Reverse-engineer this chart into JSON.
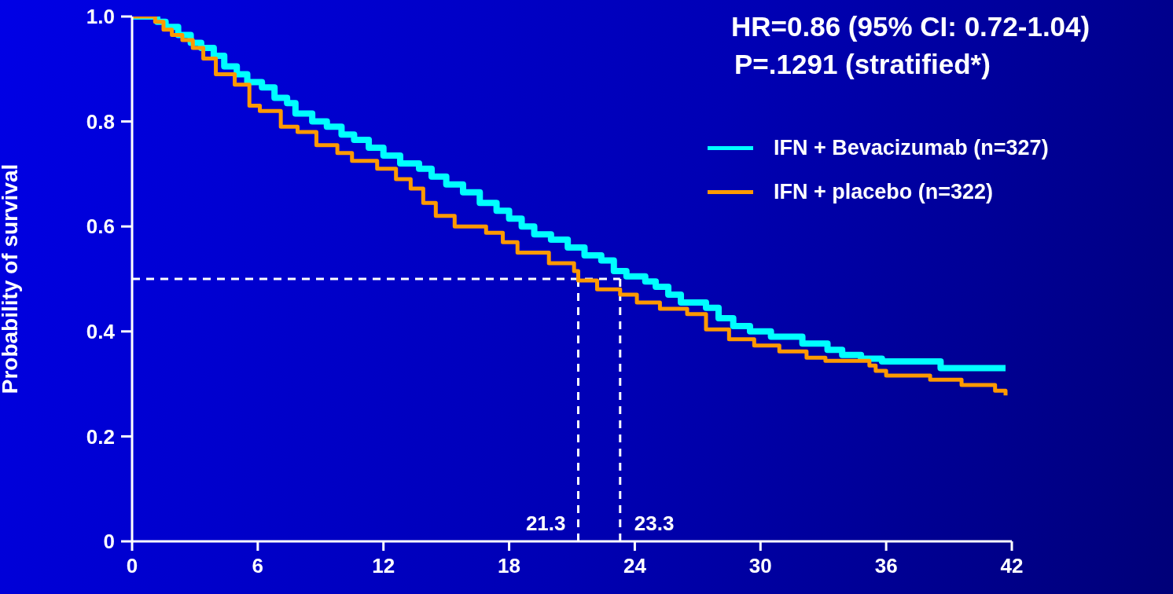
{
  "chart_data": {
    "type": "step",
    "ylabel": "Probability of survival",
    "annotations": [
      "HR=0.86 (95% CI: 0.72-1.04)",
      "P=.1291 (stratified*)"
    ],
    "xlim": [
      0,
      42
    ],
    "xticks": [
      0,
      6,
      12,
      18,
      24,
      30,
      36,
      42
    ],
    "ylim": [
      0,
      1
    ],
    "yticks": [
      {
        "value": 0,
        "label": "0"
      },
      0.2,
      0.4,
      0.6,
      0.8,
      {
        "value": 1,
        "label": "1.0"
      }
    ],
    "grid": false,
    "legend": "top right",
    "marker": "none",
    "line_style": "solid",
    "ref_lines": [
      {
        "axis": "y",
        "value": 0.5,
        "label": null,
        "color": "#ffffff",
        "line_style": "dashed"
      },
      {
        "axis": "x",
        "value": 21.3,
        "label": "21.3",
        "color": "#ffffff",
        "line_style": "dashed"
      },
      {
        "axis": "x",
        "value": 23.3,
        "label": "23.3",
        "color": "#ffffff",
        "line_style": "dashed"
      }
    ],
    "series": [
      {
        "name": "IFN + Bevacizumab (n=327)",
        "color": "#00ffff",
        "x": [
          0,
          1.2,
          1.6,
          2.2,
          2.8,
          3.3,
          3.9,
          4.4,
          5.0,
          5.5,
          6.2,
          6.8,
          7.4,
          7.8,
          8.6,
          9.3,
          10.0,
          10.6,
          11.3,
          12.0,
          12.8,
          13.7,
          14.3,
          15.0,
          15.8,
          16.6,
          17.4,
          18.0,
          18.6,
          19.2,
          20.0,
          20.8,
          21.6,
          22.4,
          23.0,
          23.6,
          24.5,
          25.0,
          25.6,
          26.2,
          27.4,
          28.0,
          28.7,
          29.5,
          30.5,
          32.0,
          33.2,
          33.9,
          34.8,
          35.8,
          38.6,
          41.7
        ],
        "values": [
          1.0,
          0.99,
          0.98,
          0.965,
          0.95,
          0.94,
          0.925,
          0.905,
          0.89,
          0.875,
          0.865,
          0.845,
          0.835,
          0.815,
          0.8,
          0.79,
          0.775,
          0.765,
          0.75,
          0.735,
          0.72,
          0.71,
          0.695,
          0.68,
          0.665,
          0.645,
          0.63,
          0.615,
          0.6,
          0.585,
          0.575,
          0.56,
          0.545,
          0.535,
          0.515,
          0.505,
          0.495,
          0.485,
          0.47,
          0.455,
          0.445,
          0.425,
          0.41,
          0.4,
          0.39,
          0.377,
          0.365,
          0.355,
          0.348,
          0.343,
          0.33,
          0.33
        ]
      },
      {
        "name": "IFN + placebo (n=322)",
        "color": "#ff9900",
        "x": [
          0,
          1.1,
          1.5,
          1.9,
          2.4,
          2.9,
          3.4,
          4.0,
          4.9,
          5.6,
          6.1,
          7.1,
          7.9,
          8.8,
          9.8,
          10.5,
          11.7,
          12.6,
          13.3,
          13.9,
          14.5,
          15.4,
          16.9,
          17.7,
          18.4,
          19.9,
          21.1,
          21.3,
          22.2,
          23.3,
          24.1,
          25.2,
          26.5,
          27.4,
          28.5,
          29.7,
          30.9,
          32.2,
          33.1,
          35.2,
          35.5,
          36.0,
          37.3,
          38.1,
          39.6,
          41.2,
          41.7
        ],
        "values": [
          1.0,
          0.99,
          0.975,
          0.965,
          0.955,
          0.94,
          0.92,
          0.89,
          0.87,
          0.83,
          0.82,
          0.79,
          0.78,
          0.755,
          0.74,
          0.725,
          0.71,
          0.69,
          0.672,
          0.645,
          0.62,
          0.6,
          0.588,
          0.57,
          0.55,
          0.53,
          0.515,
          0.497,
          0.48,
          0.47,
          0.455,
          0.443,
          0.433,
          0.404,
          0.385,
          0.373,
          0.362,
          0.35,
          0.344,
          0.335,
          0.325,
          0.316,
          0.316,
          0.308,
          0.298,
          0.287,
          0.278
        ]
      }
    ]
  }
}
